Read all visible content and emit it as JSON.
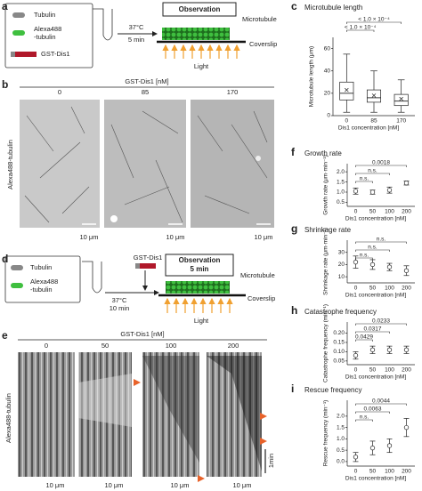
{
  "figure": {
    "panel_a": {
      "label": "a",
      "tubulin": "Tubulin",
      "alexa": [
        "Alexa488",
        "-tubulin"
      ],
      "dis1": "GST-Dis1",
      "temp": "37°C",
      "time": "5 min",
      "observation": "Observation",
      "microtubule": "Microtubule",
      "coverslip": "Coverslip",
      "light": "Light"
    },
    "panel_b": {
      "label": "b",
      "header": "GST-Dis1 [nM]",
      "columns": [
        "0",
        "85",
        "170"
      ],
      "ylabel": "Alexa488-tubulin",
      "scale_bars": [
        "10 μm",
        "10 μm",
        "10 μm"
      ]
    },
    "panel_d": {
      "label": "d",
      "tubulin": "Tubulin",
      "alexa": [
        "Alexa488",
        "-tubulin"
      ],
      "temp": "37°C",
      "time": "10 min",
      "dis1": "GST-Dis1",
      "observation": [
        "Observation",
        "5 min"
      ],
      "microtubule": "Microtubule",
      "coverslip": "Coverslip",
      "light": "Light"
    },
    "panel_e": {
      "label": "e",
      "header": "GST-Dis1 [nM]",
      "columns": [
        "0",
        "50",
        "100",
        "200"
      ],
      "ylabel": "Alexa488-tubulin",
      "scale_bars": [
        "10 μm",
        "10 μm",
        "10 μm",
        "10 μm"
      ],
      "time_bar": "1min"
    }
  },
  "chart_data": [
    {
      "type": "box",
      "label": "c",
      "title": "Microtubule length",
      "ylabel": "Microtubule length (μm)",
      "xlabel": "Dis1 concentration [nM]",
      "categories": [
        "0",
        "85",
        "170"
      ],
      "boxes": [
        {
          "low": 3,
          "q1": 14,
          "median": 20,
          "q3": 30,
          "high": 55,
          "mean": 23
        },
        {
          "low": 3,
          "q1": 12,
          "median": 16,
          "q3": 23,
          "high": 40,
          "mean": 18
        },
        {
          "low": 3,
          "q1": 9,
          "median": 13,
          "q3": 19,
          "high": 32,
          "mean": 15
        }
      ],
      "ylim": [
        0,
        70
      ],
      "yticks": [
        0,
        20,
        40,
        60
      ],
      "annotations": [
        "< 1.0 × 10⁻⁴",
        "< 1.0 × 10⁻⁴"
      ]
    },
    {
      "type": "dot",
      "label": "f",
      "title": "Growth rate",
      "ylabel": "Growth rate (μm·min⁻¹)",
      "xlabel": "Dis1 concentration [nM]",
      "categories": [
        "0",
        "50",
        "100",
        "200"
      ],
      "values": [
        1.05,
        1.0,
        1.1,
        1.45
      ],
      "errors": [
        0.15,
        0.1,
        0.15,
        0.1
      ],
      "ylim": [
        0.3,
        2.4
      ],
      "yticks": [
        {
          "value": 0.5,
          "label": "0.5"
        },
        {
          "value": 1.0,
          "label": "1.0"
        },
        {
          "value": 1.5,
          "label": "1.5"
        },
        {
          "value": 2.0,
          "label": "2.0"
        }
      ],
      "annotations": [
        "n.s.",
        "n.s.",
        "0.0018"
      ]
    },
    {
      "type": "dot",
      "label": "g",
      "title": "Shrinkage rate",
      "ylabel": "Shrinkage rate (μm·min⁻¹)",
      "xlabel": "Dis1 concentration [nM]",
      "categories": [
        "0",
        "50",
        "100",
        "200"
      ],
      "values": [
        22,
        20,
        18,
        15
      ],
      "errors": [
        5,
        4,
        3,
        4
      ],
      "ylim": [
        5,
        40
      ],
      "yticks": [
        10,
        20,
        30
      ],
      "annotations": [
        "n.s.",
        "n.s.",
        "n.s."
      ]
    },
    {
      "type": "dot",
      "label": "h",
      "title": "Catastrophe frequency",
      "ylabel": "Catastrophe frequency (min⁻¹)",
      "xlabel": "Dis1 concentration [nM]",
      "categories": [
        "0",
        "50",
        "100",
        "200"
      ],
      "values": [
        0.08,
        0.11,
        0.11,
        0.11
      ],
      "errors": [
        0.02,
        0.02,
        0.02,
        0.02
      ],
      "ylim": [
        0.03,
        0.26
      ],
      "yticks": [
        {
          "value": 0.05,
          "label": "0.05"
        },
        {
          "value": 0.1,
          "label": "0.10"
        },
        {
          "value": 0.15,
          "label": "0.15"
        },
        {
          "value": 0.2,
          "label": "0.20"
        }
      ],
      "annotations": [
        "0.0429",
        "0.0317",
        "0.0233"
      ]
    },
    {
      "type": "dot",
      "label": "i",
      "title": "Rescue frequency",
      "ylabel": "Rescue frequency (min⁻¹)",
      "xlabel": "Dis1 concentration [nM]",
      "categories": [
        "0",
        "50",
        "100",
        "200"
      ],
      "values": [
        0.2,
        0.6,
        0.7,
        1.5
      ],
      "errors": [
        0.2,
        0.3,
        0.3,
        0.4
      ],
      "ylim": [
        -0.2,
        2.7
      ],
      "yticks": [
        {
          "value": 0,
          "label": "0.0"
        },
        {
          "value": 0.5,
          "label": "0.5"
        },
        {
          "value": 1.0,
          "label": "1.0"
        },
        {
          "value": 1.5,
          "label": "1.5"
        },
        {
          "value": 2.0,
          "label": "2.0"
        }
      ],
      "annotations": [
        "n.s.",
        "0.0063",
        "0.0044"
      ]
    }
  ]
}
